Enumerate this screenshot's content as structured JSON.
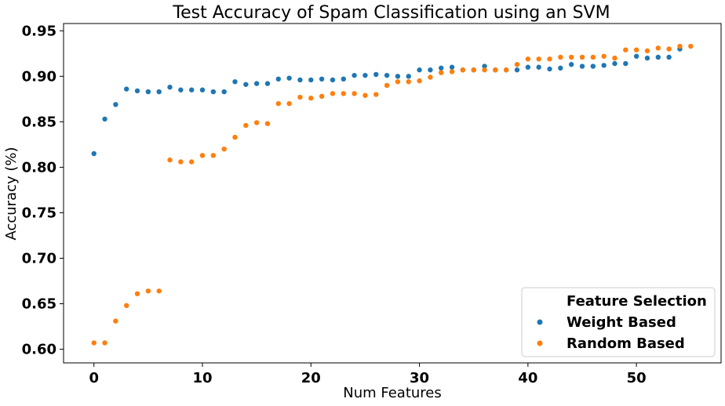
{
  "chart_data": {
    "type": "scatter",
    "title": "Test Accuracy of Spam Classification using an SVM",
    "xlabel": "Num Features",
    "ylabel": "Accuracy (%)",
    "xlim": [
      -2.8,
      57.8
    ],
    "ylim": [
      0.585,
      0.958
    ],
    "xticks": [
      0,
      10,
      20,
      30,
      40,
      50
    ],
    "yticks": [
      0.6,
      0.65,
      0.7,
      0.75,
      0.8,
      0.85,
      0.9,
      0.95
    ],
    "ytick_labels": [
      "0.60",
      "0.65",
      "0.70",
      "0.75",
      "0.80",
      "0.85",
      "0.90",
      "0.95"
    ],
    "grid": false,
    "legend": {
      "title": "Feature Selection",
      "placement": "lower-right"
    },
    "series": [
      {
        "name": "Weight Based",
        "color": "#1f77b4",
        "x": [
          0,
          1,
          2,
          3,
          4,
          5,
          6,
          7,
          8,
          9,
          10,
          11,
          12,
          13,
          14,
          15,
          16,
          17,
          18,
          19,
          20,
          21,
          22,
          23,
          24,
          25,
          26,
          27,
          28,
          29,
          30,
          31,
          32,
          33,
          34,
          35,
          36,
          37,
          38,
          39,
          40,
          41,
          42,
          43,
          44,
          45,
          46,
          47,
          48,
          49,
          50,
          51,
          52,
          53,
          54
        ],
        "y": [
          0.815,
          0.853,
          0.869,
          0.886,
          0.884,
          0.883,
          0.883,
          0.888,
          0.885,
          0.885,
          0.885,
          0.883,
          0.883,
          0.894,
          0.891,
          0.892,
          0.892,
          0.897,
          0.898,
          0.896,
          0.896,
          0.897,
          0.896,
          0.897,
          0.901,
          0.901,
          0.902,
          0.901,
          0.9,
          0.9,
          0.907,
          0.907,
          0.909,
          0.91,
          0.907,
          0.907,
          0.911,
          0.907,
          0.907,
          0.907,
          0.91,
          0.91,
          0.908,
          0.909,
          0.913,
          0.911,
          0.911,
          0.912,
          0.914,
          0.914,
          0.922,
          0.92,
          0.921,
          0.921,
          0.93
        ]
      },
      {
        "name": "Random Based",
        "color": "#ff7f0e",
        "x": [
          0,
          1,
          2,
          3,
          4,
          5,
          6,
          7,
          8,
          9,
          10,
          11,
          12,
          13,
          14,
          15,
          16,
          17,
          18,
          19,
          20,
          21,
          22,
          23,
          24,
          25,
          26,
          27,
          28,
          29,
          30,
          31,
          32,
          33,
          34,
          35,
          36,
          37,
          38,
          39,
          40,
          41,
          42,
          43,
          44,
          45,
          46,
          47,
          48,
          49,
          50,
          51,
          52,
          53,
          54,
          55
        ],
        "y": [
          0.607,
          0.607,
          0.631,
          0.648,
          0.661,
          0.664,
          0.664,
          0.808,
          0.806,
          0.806,
          0.813,
          0.813,
          0.82,
          0.833,
          0.846,
          0.849,
          0.848,
          0.87,
          0.87,
          0.877,
          0.876,
          0.878,
          0.881,
          0.881,
          0.881,
          0.879,
          0.88,
          0.89,
          0.894,
          0.894,
          0.895,
          0.899,
          0.904,
          0.905,
          0.907,
          0.907,
          0.907,
          0.907,
          0.907,
          0.913,
          0.919,
          0.919,
          0.919,
          0.921,
          0.921,
          0.921,
          0.921,
          0.922,
          0.92,
          0.929,
          0.929,
          0.928,
          0.931,
          0.93,
          0.933,
          0.933
        ]
      }
    ]
  }
}
